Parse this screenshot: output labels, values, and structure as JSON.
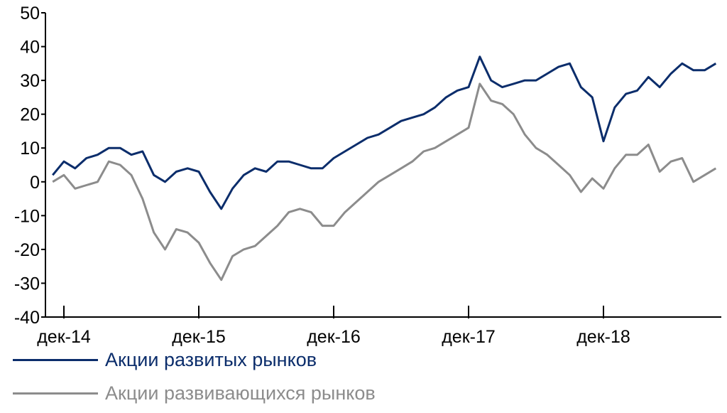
{
  "chart_data": {
    "type": "line",
    "x_categories": [
      "дек-14",
      "дек-15",
      "дек-16",
      "дек-17",
      "дек-18"
    ],
    "y_ticks": [
      "50",
      "40",
      "30",
      "20",
      "10",
      "0",
      "-10",
      "-20",
      "-30",
      "-40"
    ],
    "ylim": [
      -40,
      50
    ],
    "series": [
      {
        "name": "Акции развитых рынков",
        "color": "#0b2d6b",
        "points": [
          [
            "2014-11",
            2
          ],
          [
            "2014-12",
            6
          ],
          [
            "2015-01",
            4
          ],
          [
            "2015-02",
            7
          ],
          [
            "2015-03",
            8
          ],
          [
            "2015-04",
            10
          ],
          [
            "2015-05",
            10
          ],
          [
            "2015-06",
            8
          ],
          [
            "2015-07",
            9
          ],
          [
            "2015-08",
            2
          ],
          [
            "2015-09",
            0
          ],
          [
            "2015-10",
            3
          ],
          [
            "2015-11",
            4
          ],
          [
            "2015-12",
            3
          ],
          [
            "2016-01",
            -3
          ],
          [
            "2016-02",
            -8
          ],
          [
            "2016-03",
            -2
          ],
          [
            "2016-04",
            2
          ],
          [
            "2016-05",
            4
          ],
          [
            "2016-06",
            3
          ],
          [
            "2016-07",
            6
          ],
          [
            "2016-08",
            6
          ],
          [
            "2016-09",
            5
          ],
          [
            "2016-10",
            4
          ],
          [
            "2016-11",
            4
          ],
          [
            "2016-12",
            7
          ],
          [
            "2017-01",
            9
          ],
          [
            "2017-02",
            11
          ],
          [
            "2017-03",
            13
          ],
          [
            "2017-04",
            14
          ],
          [
            "2017-05",
            16
          ],
          [
            "2017-06",
            18
          ],
          [
            "2017-07",
            19
          ],
          [
            "2017-08",
            20
          ],
          [
            "2017-09",
            22
          ],
          [
            "2017-10",
            25
          ],
          [
            "2017-11",
            27
          ],
          [
            "2017-12",
            28
          ],
          [
            "2018-01",
            37
          ],
          [
            "2018-02",
            30
          ],
          [
            "2018-03",
            28
          ],
          [
            "2018-04",
            29
          ],
          [
            "2018-05",
            30
          ],
          [
            "2018-06",
            30
          ],
          [
            "2018-07",
            32
          ],
          [
            "2018-08",
            34
          ],
          [
            "2018-09",
            35
          ],
          [
            "2018-10",
            28
          ],
          [
            "2018-11",
            25
          ],
          [
            "2018-12",
            12
          ],
          [
            "2019-01",
            22
          ],
          [
            "2019-02",
            26
          ],
          [
            "2019-03",
            27
          ],
          [
            "2019-04",
            31
          ],
          [
            "2019-05",
            28
          ],
          [
            "2019-06",
            32
          ],
          [
            "2019-07",
            35
          ],
          [
            "2019-08",
            33
          ],
          [
            "2019-09",
            33
          ],
          [
            "2019-10",
            35
          ]
        ]
      },
      {
        "name": "Акции развивающихся рынков",
        "color": "#8c8c8c",
        "points": [
          [
            "2014-11",
            0
          ],
          [
            "2014-12",
            2
          ],
          [
            "2015-01",
            -2
          ],
          [
            "2015-02",
            -1
          ],
          [
            "2015-03",
            0
          ],
          [
            "2015-04",
            6
          ],
          [
            "2015-05",
            5
          ],
          [
            "2015-06",
            2
          ],
          [
            "2015-07",
            -5
          ],
          [
            "2015-08",
            -15
          ],
          [
            "2015-09",
            -20
          ],
          [
            "2015-10",
            -14
          ],
          [
            "2015-11",
            -15
          ],
          [
            "2015-12",
            -18
          ],
          [
            "2016-01",
            -24
          ],
          [
            "2016-02",
            -29
          ],
          [
            "2016-03",
            -22
          ],
          [
            "2016-04",
            -20
          ],
          [
            "2016-05",
            -19
          ],
          [
            "2016-06",
            -16
          ],
          [
            "2016-07",
            -13
          ],
          [
            "2016-08",
            -9
          ],
          [
            "2016-09",
            -8
          ],
          [
            "2016-10",
            -9
          ],
          [
            "2016-11",
            -13
          ],
          [
            "2016-12",
            -13
          ],
          [
            "2017-01",
            -9
          ],
          [
            "2017-02",
            -6
          ],
          [
            "2017-03",
            -3
          ],
          [
            "2017-04",
            0
          ],
          [
            "2017-05",
            2
          ],
          [
            "2017-06",
            4
          ],
          [
            "2017-07",
            6
          ],
          [
            "2017-08",
            9
          ],
          [
            "2017-09",
            10
          ],
          [
            "2017-10",
            12
          ],
          [
            "2017-11",
            14
          ],
          [
            "2017-12",
            16
          ],
          [
            "2018-01",
            29
          ],
          [
            "2018-02",
            24
          ],
          [
            "2018-03",
            23
          ],
          [
            "2018-04",
            20
          ],
          [
            "2018-05",
            14
          ],
          [
            "2018-06",
            10
          ],
          [
            "2018-07",
            8
          ],
          [
            "2018-08",
            5
          ],
          [
            "2018-09",
            2
          ],
          [
            "2018-10",
            -3
          ],
          [
            "2018-11",
            1
          ],
          [
            "2018-12",
            -2
          ],
          [
            "2019-01",
            4
          ],
          [
            "2019-02",
            8
          ],
          [
            "2019-03",
            8
          ],
          [
            "2019-04",
            11
          ],
          [
            "2019-05",
            3
          ],
          [
            "2019-06",
            6
          ],
          [
            "2019-07",
            7
          ],
          [
            "2019-08",
            0
          ],
          [
            "2019-09",
            2
          ],
          [
            "2019-10",
            4
          ]
        ]
      }
    ],
    "grid": false,
    "legend_position": "bottom-left"
  }
}
